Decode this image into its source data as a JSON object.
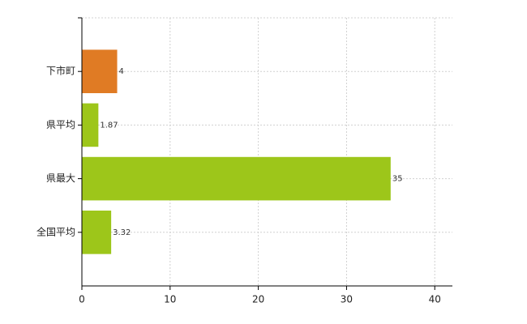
{
  "chart_data": {
    "type": "bar",
    "orientation": "horizontal",
    "categories": [
      "下市町",
      "県平均",
      "県最大",
      "全国平均"
    ],
    "values": [
      4,
      1.87,
      35,
      3.32
    ],
    "colors": [
      "#e07b24",
      "#9dc61a",
      "#9dc61a",
      "#9dc61a"
    ],
    "xlim": [
      0,
      42
    ],
    "xticks": [
      0,
      10,
      20,
      30,
      40
    ],
    "grid": true
  }
}
